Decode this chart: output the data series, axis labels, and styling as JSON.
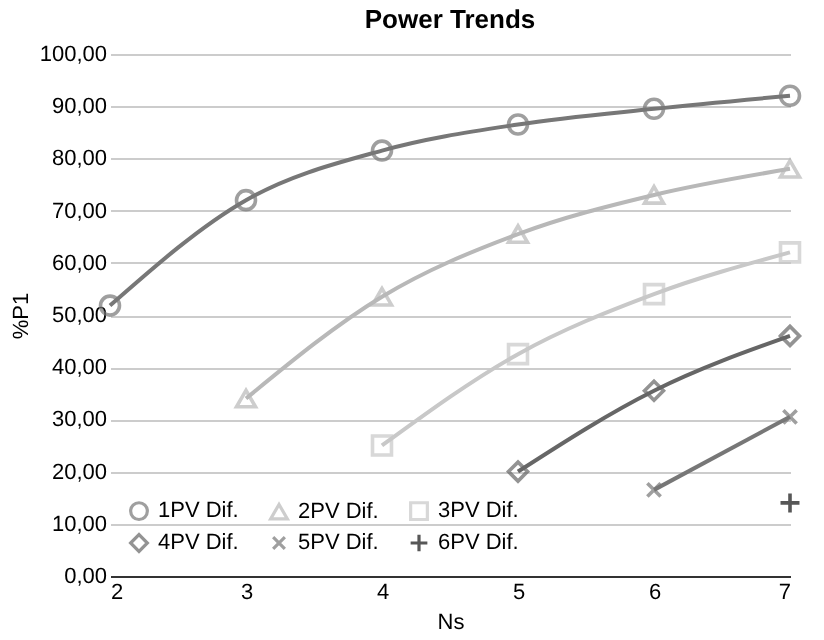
{
  "chart_data": {
    "type": "line",
    "title": "Power Trends",
    "xlabel": "Ns",
    "ylabel": "%P1",
    "xlim": [
      2,
      7
    ],
    "xticks": [
      2,
      3,
      4,
      5,
      6,
      7
    ],
    "ylim": [
      0,
      100
    ],
    "yticks": [
      {
        "value": 0,
        "label": "0,00"
      },
      {
        "value": 10,
        "label": "10,00"
      },
      {
        "value": 20,
        "label": "20,00"
      },
      {
        "value": 30,
        "label": "30,00"
      },
      {
        "value": 40,
        "label": "40,00"
      },
      {
        "value": 50,
        "label": "50,00"
      },
      {
        "value": 60,
        "label": "60,00"
      },
      {
        "value": 70,
        "label": "70,00"
      },
      {
        "value": 80,
        "label": "80,00"
      },
      {
        "value": 90,
        "label": "90,00"
      },
      {
        "value": 100,
        "label": "100,00"
      }
    ],
    "grid": "y",
    "legend": "bottom left",
    "series": [
      {
        "name": "1PV Dif.",
        "color": "#777777",
        "marker": "circle",
        "x": [
          2,
          3,
          4,
          5,
          6,
          7
        ],
        "values": [
          51.8,
          72,
          81.5,
          86.5,
          89.5,
          92
        ]
      },
      {
        "name": "2PV Dif.",
        "color": "#b8b8b8",
        "marker": "triangle",
        "x": [
          3,
          4,
          5,
          6,
          7
        ],
        "values": [
          34,
          53.5,
          65.5,
          73,
          78
        ]
      },
      {
        "name": "3PV Dif.",
        "color": "#c8c8c8",
        "marker": "square",
        "x": [
          4,
          5,
          6,
          7
        ],
        "values": [
          25,
          42.5,
          54,
          62
        ]
      },
      {
        "name": "4PV Dif.",
        "color": "#666666",
        "marker": "diamond",
        "x": [
          5,
          6,
          7
        ],
        "values": [
          20,
          35.5,
          46
        ]
      },
      {
        "name": "5PV Dif.",
        "color": "#777777",
        "marker": "x",
        "x": [
          6,
          7
        ],
        "values": [
          16.5,
          30.5
        ]
      },
      {
        "name": "6PV Dif.",
        "color": "#111111",
        "marker": "plus",
        "x": [
          7
        ],
        "values": [
          14
        ]
      }
    ]
  }
}
